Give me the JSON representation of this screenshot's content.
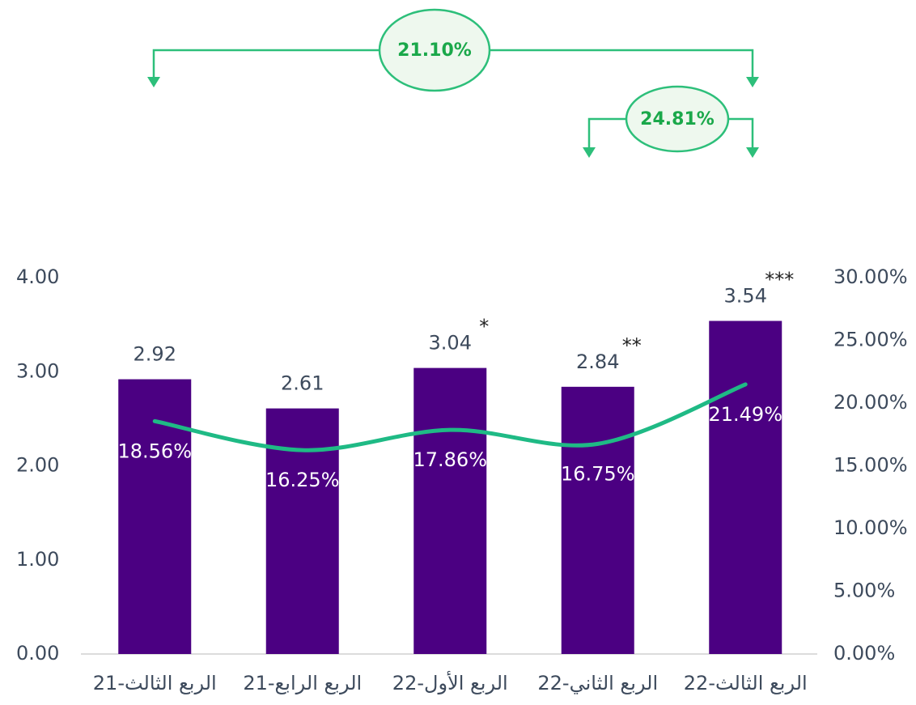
{
  "chart_data": {
    "type": "bar_line",
    "categories": [
      "الربع الثالث-21",
      "الربع الرابع-21",
      "الربع الأول-22",
      "الربع الثاني-22",
      "الربع الثالث-22"
    ],
    "series": [
      {
        "type": "bar",
        "color": "#4b0082",
        "values": [
          2.92,
          2.61,
          3.04,
          2.84,
          3.54
        ]
      },
      {
        "type": "line",
        "axis": "y2",
        "color": "#1fba85",
        "values": [
          18.56,
          16.25,
          17.86,
          16.75,
          21.49
        ],
        "value_labels": [
          "18.56%",
          "16.25%",
          "17.86%",
          "16.75%",
          "21.49%"
        ]
      }
    ],
    "ylim": [
      0,
      4
    ],
    "yticks": [
      {
        "value": 0,
        "label": "0.00"
      },
      {
        "value": 1,
        "label": "1.00"
      },
      {
        "value": 2,
        "label": "2.00"
      },
      {
        "value": 3,
        "label": "3.00"
      },
      {
        "value": 4,
        "label": "4.00"
      }
    ],
    "y2lim": [
      0,
      30
    ],
    "y2ticks": [
      {
        "value": 0,
        "label": "0.00%"
      },
      {
        "value": 5,
        "label": "5.00%"
      },
      {
        "value": 10,
        "label": "10.00%"
      },
      {
        "value": 15,
        "label": "15.00%"
      },
      {
        "value": 20,
        "label": "20.00%"
      },
      {
        "value": 25,
        "label": "25.00%"
      },
      {
        "value": 30,
        "label": "30.00%"
      }
    ],
    "bar_notes": [
      "*",
      "**",
      "***"
    ],
    "growth_labels": [
      "21.10%",
      "24.81%"
    ]
  }
}
